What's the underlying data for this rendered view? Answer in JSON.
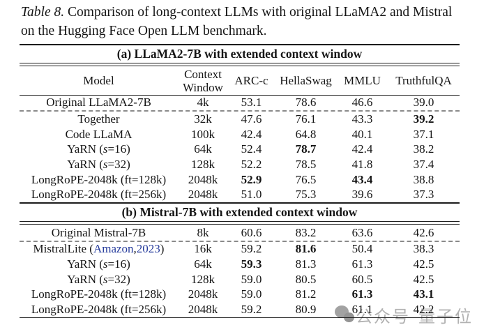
{
  "caption": {
    "label": "Table 8.",
    "text": " Comparison of long-context LLMs with original LLaMA2 and Mistral on the Hugging Face Open LLM benchmark."
  },
  "table": {
    "columns": [
      "Model",
      "Context\nWindow",
      "ARC-c",
      "HellaSwag",
      "MMLU",
      "TruthfulQA"
    ],
    "sections": [
      {
        "title": "(a) LLaMA2-7B with extended context window",
        "rows": [
          {
            "model": [
              {
                "t": "Original LLaMA2-7B"
              }
            ],
            "cells": [
              "4k",
              "53.1",
              "78.6",
              "46.6",
              "39.0"
            ],
            "bold": [],
            "dashed_after": true
          },
          {
            "model": [
              {
                "t": "Together"
              }
            ],
            "cells": [
              "32k",
              "47.6",
              "76.1",
              "43.3",
              "39.2"
            ],
            "bold": [
              4
            ]
          },
          {
            "model": [
              {
                "t": "Code LLaMA"
              }
            ],
            "cells": [
              "100k",
              "42.4",
              "64.8",
              "40.1",
              "37.1"
            ],
            "bold": []
          },
          {
            "model": [
              {
                "t": "YaRN ("
              },
              {
                "t": "s",
                "i": true
              },
              {
                "t": "=16)"
              }
            ],
            "cells": [
              "64k",
              "52.4",
              "78.7",
              "42.4",
              "38.2"
            ],
            "bold": [
              2
            ]
          },
          {
            "model": [
              {
                "t": "YaRN ("
              },
              {
                "t": "s",
                "i": true
              },
              {
                "t": "=32)"
              }
            ],
            "cells": [
              "128k",
              "52.2",
              "78.5",
              "41.8",
              "37.4"
            ],
            "bold": []
          },
          {
            "model": [
              {
                "t": "LongRoPE-2048k (ft=128k)"
              }
            ],
            "cells": [
              "2048k",
              "52.9",
              "76.5",
              "43.4",
              "38.8"
            ],
            "bold": [
              1,
              3
            ]
          },
          {
            "model": [
              {
                "t": "LongRoPE-2048k (ft=256k)"
              }
            ],
            "cells": [
              "2048k",
              "51.0",
              "75.3",
              "39.6",
              "37.3"
            ],
            "bold": []
          }
        ]
      },
      {
        "title": "(b) Mistral-7B with extended context window",
        "rows": [
          {
            "model": [
              {
                "t": "Original Mistral-7B"
              }
            ],
            "cells": [
              "8k",
              "60.6",
              "83.2",
              "63.6",
              "42.6"
            ],
            "bold": [],
            "dashed_after": true
          },
          {
            "model": [
              {
                "t": "MistralLite ("
              },
              {
                "t": "Amazon",
                "c": true
              },
              {
                "t": ", "
              },
              {
                "t": "2023",
                "c": true
              },
              {
                "t": ")"
              }
            ],
            "cells": [
              "16k",
              "59.2",
              "81.6",
              "50.4",
              "38.3"
            ],
            "bold": [
              2
            ]
          },
          {
            "model": [
              {
                "t": "YaRN ("
              },
              {
                "t": "s",
                "i": true
              },
              {
                "t": "=16)"
              }
            ],
            "cells": [
              "64k",
              "59.3",
              "81.3",
              "61.3",
              "42.5"
            ],
            "bold": [
              1
            ]
          },
          {
            "model": [
              {
                "t": "YaRN ("
              },
              {
                "t": "s",
                "i": true
              },
              {
                "t": "=32)"
              }
            ],
            "cells": [
              "128k",
              "59.0",
              "80.5",
              "60.5",
              "42.5"
            ],
            "bold": []
          },
          {
            "model": [
              {
                "t": "LongRoPE-2048k (ft=128k)"
              }
            ],
            "cells": [
              "2048k",
              "59.0",
              "81.2",
              "61.3",
              "43.1"
            ],
            "bold": [
              3,
              4
            ]
          },
          {
            "model": [
              {
                "t": "LongRoPE-2048k (ft=256k)"
              }
            ],
            "cells": [
              "2048k",
              "59.2",
              "80.9",
              "61.1",
              "42.2"
            ],
            "bold": []
          }
        ]
      }
    ]
  },
  "watermark": {
    "icon": "speech-bubbles-icon",
    "text1": "公众号",
    "text2": "量子位",
    "color": "#b2b2b2"
  },
  "colors": {
    "citation_link": "#263c9c",
    "rule": "#1c1c1c",
    "dashed_rule": "#8a8a8a",
    "text": "#151515"
  }
}
